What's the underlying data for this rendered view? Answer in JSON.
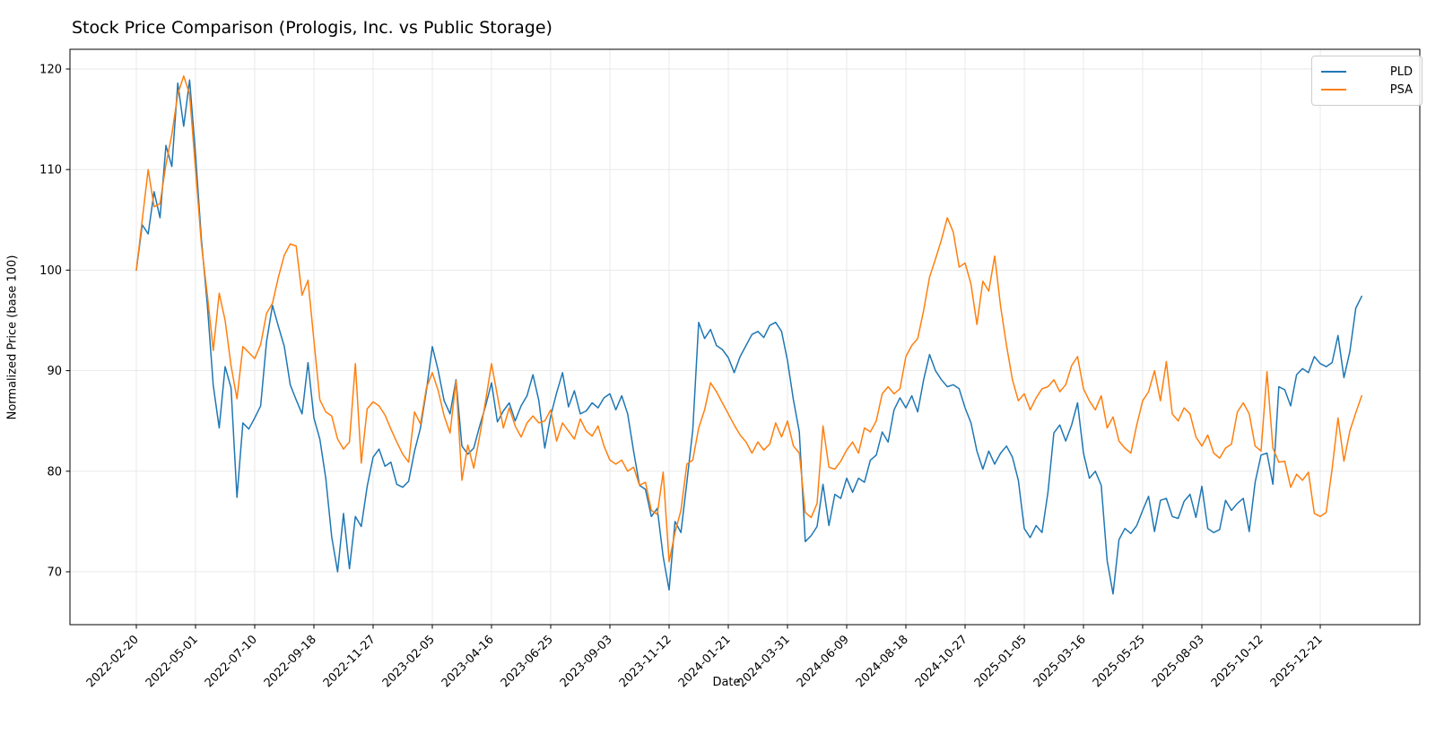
{
  "title": "Stock Price Comparison (Prologis, Inc. vs Public Storage)",
  "chart_data": {
    "type": "line",
    "title": "Stock Price Comparison (Prologis, Inc. vs Public Storage)",
    "xlabel": "Date",
    "ylabel": "Normalized Price (base 100)",
    "grid": true,
    "legend_position": "upper right",
    "x_start_date": "2022-02-22",
    "x_step_days": 7,
    "x_tick_labels": [
      "2022-02-20",
      "2022-05-01",
      "2022-07-10",
      "2022-09-18",
      "2022-11-27",
      "2023-02-05",
      "2023-04-16",
      "2023-06-25",
      "2023-09-03",
      "2023-11-12",
      "2024-01-21",
      "2024-03-31",
      "2024-06-09",
      "2024-08-18",
      "2024-10-27",
      "2025-01-05",
      "2025-03-16",
      "2025-05-25",
      "2025-08-03",
      "2025-10-12",
      "2025-12-21"
    ],
    "x_tick_week_indices": [
      0,
      10,
      20,
      30,
      40,
      50,
      60,
      70,
      80,
      90,
      100,
      110,
      120,
      130,
      140,
      150,
      160,
      170,
      180,
      190,
      200
    ],
    "y_ticks": [
      70,
      80,
      90,
      100,
      110,
      120
    ],
    "ylim": [
      64.74,
      121.96
    ],
    "series": [
      {
        "name": "PLD",
        "color": "#1f77b4",
        "values": [
          100.0,
          104.5,
          103.6,
          107.8,
          105.2,
          112.4,
          110.3,
          118.6,
          114.3,
          118.9,
          111.5,
          103.0,
          96.5,
          88.5,
          84.3,
          90.4,
          88.3,
          77.4,
          84.8,
          84.2,
          85.3,
          86.5,
          92.9,
          96.5,
          94.4,
          92.4,
          88.6,
          87.1,
          85.7,
          90.8,
          85.3,
          83.2,
          79.3,
          73.5,
          70.0,
          75.8,
          70.3,
          75.5,
          74.5,
          78.5,
          81.4,
          82.2,
          80.5,
          80.9,
          78.7,
          78.4,
          79.0,
          82.0,
          84.3,
          88.0,
          92.4,
          90.0,
          87.0,
          85.7,
          89.1,
          82.5,
          81.7,
          82.3,
          84.5,
          86.5,
          88.8,
          84.9,
          86.0,
          86.8,
          85.0,
          86.5,
          87.5,
          89.6,
          87.0,
          82.3,
          85.5,
          87.8,
          89.8,
          86.4,
          88.0,
          85.7,
          86.0,
          86.8,
          86.3,
          87.3,
          87.7,
          86.1,
          87.5,
          85.7,
          82.0,
          78.6,
          78.2,
          75.5,
          76.3,
          71.5,
          68.2,
          75.0,
          73.9,
          78.9,
          84.1,
          94.8,
          93.2,
          94.1,
          92.5,
          92.1,
          91.3,
          89.8,
          91.4,
          92.5,
          93.6,
          93.9,
          93.3,
          94.5,
          94.8,
          93.9,
          91.0,
          87.1,
          83.9,
          73.0,
          73.6,
          74.5,
          78.7,
          74.6,
          77.7,
          77.3,
          79.3,
          77.9,
          79.3,
          78.9,
          81.1,
          81.6,
          83.9,
          82.9,
          86.1,
          87.3,
          86.3,
          87.5,
          85.9,
          89.1,
          91.6,
          90.0,
          89.1,
          88.4,
          88.6,
          88.2,
          86.3,
          84.8,
          82.0,
          80.2,
          82.0,
          80.7,
          81.8,
          82.5,
          81.4,
          79.1,
          74.3,
          73.4,
          74.6,
          73.9,
          77.9,
          83.8,
          84.6,
          83.0,
          84.6,
          86.8,
          81.8,
          79.3,
          80.0,
          78.6,
          71.1,
          67.8,
          73.2,
          74.3,
          73.8,
          74.6,
          76.1,
          77.5,
          74.0,
          77.1,
          77.3,
          75.5,
          75.3,
          77.0,
          77.7,
          75.4,
          78.5,
          74.3,
          73.9,
          74.2,
          77.1,
          76.1,
          76.8,
          77.3,
          74.0,
          78.9,
          81.6,
          81.8,
          78.7,
          88.4,
          88.1,
          86.5,
          89.6,
          90.2,
          89.8,
          91.4,
          90.7,
          90.4,
          90.8,
          93.5,
          89.3,
          91.9,
          96.2,
          97.4
        ]
      },
      {
        "name": "PSA",
        "color": "#ff7f0e",
        "values": [
          100.0,
          105.0,
          110.0,
          106.3,
          106.6,
          110.5,
          113.5,
          117.5,
          119.3,
          117.5,
          110.0,
          102.5,
          97.5,
          92.0,
          97.7,
          95.0,
          90.5,
          87.2,
          92.4,
          91.8,
          91.2,
          92.6,
          95.7,
          96.7,
          99.3,
          101.5,
          102.6,
          102.4,
          97.5,
          99.0,
          93.0,
          87.1,
          85.9,
          85.5,
          83.2,
          82.2,
          82.9,
          90.7,
          80.8,
          86.2,
          86.9,
          86.5,
          85.6,
          84.2,
          82.9,
          81.7,
          80.9,
          85.9,
          84.7,
          88.3,
          89.8,
          88.0,
          85.5,
          83.8,
          89.0,
          79.1,
          82.6,
          80.3,
          83.5,
          87.0,
          90.7,
          87.5,
          84.3,
          86.3,
          84.5,
          83.4,
          84.8,
          85.5,
          84.8,
          85.0,
          86.1,
          83.0,
          84.8,
          84.0,
          83.2,
          85.2,
          84.0,
          83.5,
          84.5,
          82.5,
          81.1,
          80.7,
          81.1,
          80.0,
          80.4,
          78.6,
          78.9,
          76.1,
          75.7,
          79.9,
          71.0,
          73.9,
          76.1,
          80.7,
          81.1,
          84.3,
          86.1,
          88.8,
          87.9,
          86.8,
          85.7,
          84.6,
          83.6,
          82.9,
          81.8,
          82.9,
          82.1,
          82.7,
          84.8,
          83.4,
          85.0,
          82.5,
          81.8,
          75.9,
          75.4,
          76.8,
          84.5,
          80.4,
          80.2,
          81.0,
          82.1,
          82.9,
          81.8,
          84.3,
          83.9,
          85.0,
          87.7,
          88.4,
          87.7,
          88.2,
          91.4,
          92.5,
          93.2,
          96.0,
          99.3,
          101.1,
          103.0,
          105.2,
          103.8,
          100.3,
          100.7,
          98.6,
          94.6,
          98.9,
          97.9,
          101.4,
          96.4,
          92.5,
          89.1,
          87.0,
          87.7,
          86.1,
          87.3,
          88.2,
          88.4,
          89.1,
          87.9,
          88.6,
          90.5,
          91.4,
          88.2,
          87.0,
          86.1,
          87.5,
          84.3,
          85.4,
          83.0,
          82.3,
          81.8,
          84.6,
          87.0,
          87.9,
          90.0,
          87.0,
          90.9,
          85.7,
          85.0,
          86.3,
          85.7,
          83.4,
          82.5,
          83.6,
          81.8,
          81.3,
          82.3,
          82.7,
          85.9,
          86.8,
          85.7,
          82.5,
          82.0,
          89.9,
          82.3,
          80.9,
          81.0,
          78.4,
          79.7,
          79.1,
          79.9,
          75.8,
          75.5,
          75.9,
          80.2,
          85.3,
          81.0,
          84.0,
          85.8,
          87.5
        ]
      }
    ]
  }
}
